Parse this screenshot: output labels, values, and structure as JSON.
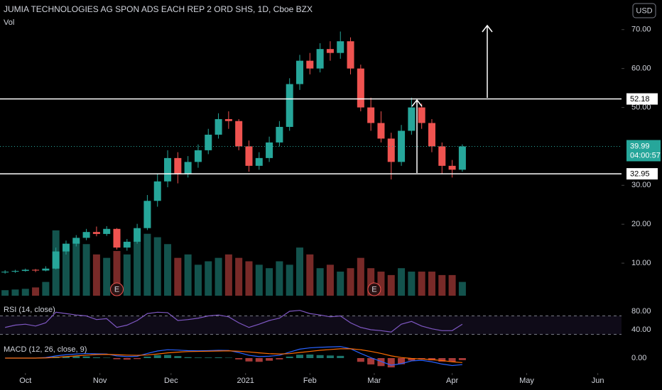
{
  "chart_data": {
    "type": "candlestick",
    "title": "JUMIA TECHNOLOGIES AG SPON ADS EACH REP 2 ORD SHS, 1D, Cboe BZX",
    "volume_label": "Vol",
    "currency": "USD",
    "x": [
      -6,
      -3,
      0,
      3,
      6,
      9,
      12,
      15,
      18,
      21,
      24,
      27,
      30,
      33,
      36,
      39,
      42,
      45,
      48,
      51,
      54,
      57,
      60,
      63,
      66,
      69,
      72,
      75,
      78,
      81,
      84,
      87,
      90,
      93,
      96,
      99,
      102,
      105,
      108,
      111,
      114,
      117,
      120,
      123,
      126,
      129
    ],
    "open": [
      7.6,
      7.8,
      8.0,
      8.3,
      8.1,
      8.6,
      13.0,
      15.0,
      16.5,
      18.0,
      17.5,
      18.8,
      14.0,
      15.5,
      19.0,
      26.0,
      31.0,
      37.0,
      33.0,
      36.0,
      39.0,
      43.0,
      47.0,
      46.5,
      40.0,
      35.0,
      37.0,
      41.0,
      45.0,
      56.0,
      62.0,
      60.0,
      65.0,
      64.0,
      67.0,
      60.0,
      50.0,
      46.0,
      42.0,
      36.0,
      44.0,
      50.0,
      46.0,
      40.0,
      35.0,
      34.0
    ],
    "high": [
      8.2,
      8.3,
      8.6,
      8.5,
      9.2,
      14.0,
      15.8,
      17.2,
      18.8,
      19.4,
      19.5,
      19.0,
      16.2,
      20.1,
      27.5,
      33.0,
      39.0,
      38.5,
      37.5,
      40.5,
      44.5,
      48.5,
      49.0,
      47.0,
      41.5,
      38.5,
      42.5,
      46.5,
      57.5,
      63.5,
      64.0,
      66.5,
      67.0,
      69.5,
      68.0,
      61.0,
      52.5,
      49.0,
      43.5,
      45.5,
      52.5,
      51.0,
      47.0,
      41.0,
      36.5,
      40.5
    ],
    "low": [
      7.3,
      7.5,
      7.8,
      7.7,
      7.9,
      8.4,
      12.2,
      14.3,
      15.9,
      16.9,
      17.0,
      13.5,
      13.2,
      15.0,
      18.5,
      24.5,
      29.5,
      30.5,
      32.0,
      34.5,
      38.0,
      42.0,
      44.5,
      39.0,
      33.5,
      34.0,
      36.0,
      40.0,
      44.0,
      54.5,
      58.5,
      59.0,
      62.0,
      62.5,
      58.5,
      49.0,
      44.0,
      41.0,
      31.5,
      35.0,
      43.0,
      44.5,
      38.5,
      33.0,
      32.0,
      33.5
    ],
    "close": [
      7.8,
      8.0,
      8.3,
      8.1,
      8.6,
      13.0,
      15.0,
      16.5,
      18.0,
      17.5,
      18.8,
      14.0,
      15.5,
      19.0,
      26.0,
      31.0,
      37.0,
      33.0,
      36.0,
      39.0,
      43.0,
      47.0,
      46.5,
      40.0,
      35.0,
      37.0,
      41.0,
      45.0,
      56.0,
      62.0,
      60.0,
      65.0,
      64.0,
      67.0,
      60.0,
      50.0,
      46.0,
      42.0,
      36.0,
      44.0,
      50.0,
      46.0,
      40.0,
      35.0,
      34.0,
      39.99
    ],
    "xlim": [
      -7.5,
      176
    ],
    "xticks": [
      {
        "value": 0,
        "label": "Oct"
      },
      {
        "value": 22,
        "label": "Nov"
      },
      {
        "value": 43,
        "label": "Dec"
      },
      {
        "value": 65,
        "label": "2021"
      },
      {
        "value": 84,
        "label": "Feb"
      },
      {
        "value": 103,
        "label": "Mar"
      },
      {
        "value": 126,
        "label": "Apr"
      },
      {
        "value": 148,
        "label": "May"
      },
      {
        "value": 169,
        "label": "Jun"
      }
    ],
    "ylim": [
      0,
      77.6
    ],
    "yticks": [
      {
        "value": 10,
        "label": "10.00"
      },
      {
        "value": 20,
        "label": "20.00"
      },
      {
        "value": 30,
        "label": "30.00"
      },
      {
        "value": 50,
        "label": "50.00"
      },
      {
        "value": 60,
        "label": "60.00"
      },
      {
        "value": 70,
        "label": "70.00"
      }
    ],
    "up_color": "#26a69a",
    "down_color": "#ef5350",
    "levels": [
      52.18,
      32.95
    ],
    "countdown": "04:00:57",
    "events": [
      {
        "x": 27,
        "label": "E"
      },
      {
        "x": 103,
        "label": "E"
      }
    ],
    "volume": {
      "values": [
        8,
        9,
        10,
        12,
        20,
        95,
        70,
        80,
        75,
        60,
        55,
        65,
        60,
        80,
        90,
        85,
        75,
        55,
        60,
        45,
        50,
        55,
        60,
        55,
        50,
        45,
        40,
        50,
        45,
        70,
        60,
        40,
        45,
        35,
        40,
        55,
        40,
        35,
        30,
        40,
        35,
        35,
        35,
        30,
        30,
        20
      ],
      "ylim": [
        0,
        100
      ]
    },
    "rsi": {
      "label": "RSI (14, close)",
      "color": "#7e57c2",
      "ylim": [
        20,
        100
      ],
      "bands": [
        70,
        30
      ],
      "yticks": [
        {
          "value": 80,
          "label": "80.00"
        },
        {
          "value": 40,
          "label": "40.00"
        }
      ],
      "values": [
        45,
        50,
        52,
        48,
        55,
        78,
        75,
        72,
        70,
        62,
        64,
        45,
        50,
        60,
        75,
        78,
        77,
        60,
        62,
        65,
        70,
        72,
        68,
        55,
        45,
        52,
        60,
        65,
        80,
        82,
        75,
        72,
        68,
        70,
        55,
        45,
        40,
        38,
        35,
        52,
        58,
        48,
        42,
        38,
        38,
        52
      ]
    },
    "macd": {
      "label": "MACD (12, 26, close, 9)",
      "macd_color": "#2962ff",
      "signal_color": "#ff6d00",
      "ylim": [
        -8,
        8
      ],
      "yticks": [
        {
          "value": 0,
          "label": "0.00"
        }
      ],
      "macd": [
        0,
        0,
        0,
        0,
        0.3,
        1.2,
        1.8,
        2.2,
        2.5,
        2.3,
        2.2,
        1.2,
        0.8,
        1.0,
        2.5,
        3.8,
        4.5,
        4.3,
        4.0,
        3.9,
        4.0,
        4.2,
        4.1,
        3.0,
        1.5,
        0.8,
        1.0,
        1.5,
        3.2,
        4.8,
        5.5,
        5.8,
        6.0,
        6.2,
        5.0,
        2.5,
        0.2,
        -1.8,
        -3.8,
        -3.0,
        -1.5,
        -1.2,
        -2.0,
        -3.2,
        -4.0,
        -3.5
      ],
      "signal": [
        0,
        0,
        0,
        0,
        0.1,
        0.4,
        0.8,
        1.2,
        1.6,
        1.9,
        2.0,
        1.8,
        1.6,
        1.5,
        1.7,
        2.2,
        2.8,
        3.2,
        3.5,
        3.6,
        3.7,
        3.8,
        3.9,
        3.7,
        3.3,
        2.8,
        2.4,
        2.2,
        2.4,
        3.0,
        3.6,
        4.2,
        4.6,
        5.0,
        5.0,
        4.5,
        3.6,
        2.5,
        1.2,
        0.3,
        -0.2,
        -0.5,
        -0.8,
        -1.3,
        -2.0,
        -2.4
      ],
      "histogram": [
        0,
        0,
        0,
        0,
        0.2,
        0.8,
        1.0,
        1.0,
        0.9,
        0.4,
        0.2,
        -0.6,
        -0.8,
        -0.5,
        0.8,
        1.6,
        1.7,
        1.1,
        0.5,
        0.3,
        0.3,
        0.4,
        0.2,
        -0.7,
        -1.8,
        -2.0,
        -1.4,
        -0.7,
        0.8,
        1.8,
        1.9,
        1.6,
        1.4,
        1.2,
        0.0,
        -2.0,
        -3.4,
        -4.3,
        -5.0,
        -3.3,
        -1.3,
        -0.7,
        -1.2,
        -1.9,
        -2.0,
        -1.1
      ]
    }
  }
}
